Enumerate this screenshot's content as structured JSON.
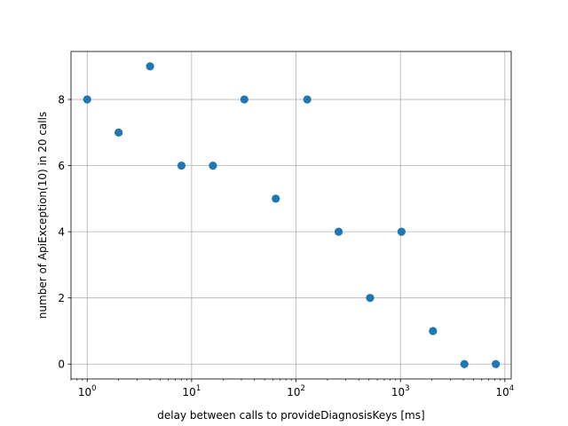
{
  "chart_data": {
    "type": "scatter",
    "title": "",
    "xlabel": "delay between calls to provideDiagnosisKeys [ms]",
    "ylabel": "number of ApiException(10) in 20 calls",
    "xscale": "log",
    "xlim": [
      0.7,
      11500
    ],
    "ylim": [
      -0.45,
      9.45
    ],
    "grid": true,
    "marker_color": "#1f77b4",
    "x_ticks": [
      {
        "value": 1,
        "base": "10",
        "exp": "0"
      },
      {
        "value": 10,
        "base": "10",
        "exp": "1"
      },
      {
        "value": 100,
        "base": "10",
        "exp": "2"
      },
      {
        "value": 1000,
        "base": "10",
        "exp": "3"
      },
      {
        "value": 10000,
        "base": "10",
        "exp": "4"
      }
    ],
    "y_ticks": [
      {
        "value": 0,
        "label": "0"
      },
      {
        "value": 2,
        "label": "2"
      },
      {
        "value": 4,
        "label": "4"
      },
      {
        "value": 6,
        "label": "6"
      },
      {
        "value": 8,
        "label": "8"
      }
    ],
    "points": [
      {
        "x": 1,
        "y": 8
      },
      {
        "x": 2,
        "y": 7
      },
      {
        "x": 4,
        "y": 9
      },
      {
        "x": 8,
        "y": 6
      },
      {
        "x": 16,
        "y": 6
      },
      {
        "x": 32,
        "y": 8
      },
      {
        "x": 64,
        "y": 5
      },
      {
        "x": 128,
        "y": 8
      },
      {
        "x": 256,
        "y": 4
      },
      {
        "x": 512,
        "y": 2
      },
      {
        "x": 1024,
        "y": 4
      },
      {
        "x": 2048,
        "y": 1
      },
      {
        "x": 4096,
        "y": 0
      },
      {
        "x": 8192,
        "y": 0
      }
    ]
  }
}
